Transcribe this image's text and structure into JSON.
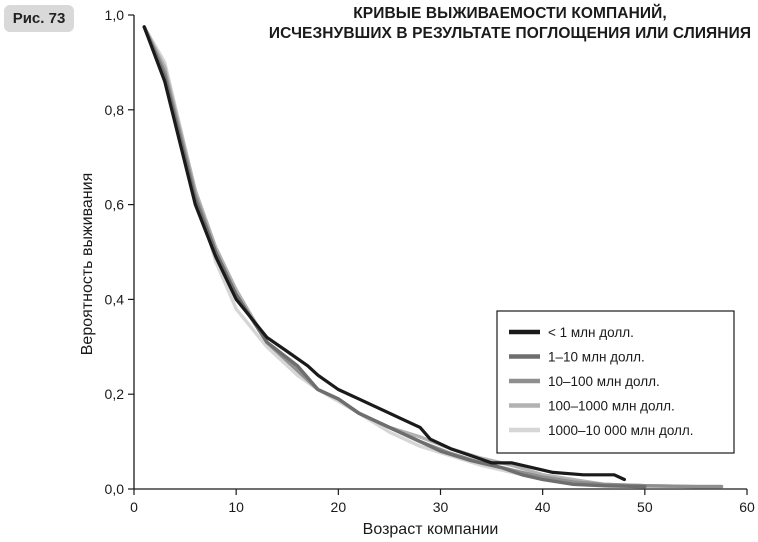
{
  "figure_label": "Рис. 73",
  "chart_data": {
    "type": "line",
    "title_lines": [
      "КРИВЫЕ ВЫЖИВАЕМОСТИ КОМПАНИЙ,",
      "ИСЧЕЗНУВШИХ В РЕЗУЛЬТАТЕ ПОГЛОЩЕНИЯ ИЛИ СЛИЯНИЯ"
    ],
    "xlabel": "Возраст компании",
    "ylabel": "Вероятность выживания",
    "xlim": [
      0,
      60
    ],
    "ylim": [
      0,
      1
    ],
    "x_ticks": [
      0,
      10,
      20,
      30,
      40,
      50,
      60
    ],
    "x_tick_labels": [
      "0",
      "10",
      "20",
      "30",
      "40",
      "50",
      "60"
    ],
    "y_ticks": [
      0,
      0.2,
      0.4,
      0.6,
      0.8,
      1.0
    ],
    "y_tick_labels": [
      "0,0",
      "0,2",
      "0,4",
      "0,6",
      "0,8",
      "1,0"
    ],
    "legend_position": "right",
    "series": [
      {
        "name": "< 1 млн долл.",
        "color": "#1a1a1a",
        "points": [
          [
            1,
            0.975
          ],
          [
            3,
            0.86
          ],
          [
            6,
            0.6
          ],
          [
            8,
            0.49
          ],
          [
            10,
            0.4
          ],
          [
            13,
            0.32
          ],
          [
            15,
            0.29
          ],
          [
            17,
            0.26
          ],
          [
            18,
            0.24
          ],
          [
            20,
            0.21
          ],
          [
            22,
            0.19
          ],
          [
            24,
            0.17
          ],
          [
            26,
            0.15
          ],
          [
            28,
            0.13
          ],
          [
            29,
            0.105
          ],
          [
            31,
            0.085
          ],
          [
            33,
            0.07
          ],
          [
            35,
            0.055
          ],
          [
            37,
            0.055
          ],
          [
            39,
            0.045
          ],
          [
            41,
            0.035
          ],
          [
            44,
            0.03
          ],
          [
            47,
            0.03
          ],
          [
            48,
            0.02
          ]
        ]
      },
      {
        "name": "1–10 млн долл.",
        "color": "#6e6e6e",
        "points": [
          [
            1,
            0.975
          ],
          [
            3,
            0.87
          ],
          [
            6,
            0.61
          ],
          [
            8,
            0.5
          ],
          [
            10,
            0.41
          ],
          [
            13,
            0.31
          ],
          [
            16,
            0.26
          ],
          [
            18,
            0.21
          ],
          [
            20,
            0.19
          ],
          [
            22,
            0.16
          ],
          [
            25,
            0.13
          ],
          [
            28,
            0.1
          ],
          [
            30,
            0.08
          ],
          [
            33,
            0.06
          ],
          [
            36,
            0.045
          ],
          [
            38,
            0.03
          ],
          [
            40,
            0.02
          ],
          [
            43,
            0.01
          ],
          [
            46,
            0.007
          ],
          [
            50,
            0.005
          ]
        ]
      },
      {
        "name": "10–100 млн долл.",
        "color": "#8f8f8f",
        "points": [
          [
            1,
            0.975
          ],
          [
            3,
            0.88
          ],
          [
            6,
            0.62
          ],
          [
            8,
            0.5
          ],
          [
            10,
            0.41
          ],
          [
            13,
            0.31
          ],
          [
            16,
            0.25
          ],
          [
            18,
            0.21
          ],
          [
            20,
            0.19
          ],
          [
            22,
            0.16
          ],
          [
            25,
            0.13
          ],
          [
            28,
            0.1
          ],
          [
            31,
            0.075
          ],
          [
            34,
            0.055
          ],
          [
            37,
            0.04
          ],
          [
            40,
            0.025
          ],
          [
            43,
            0.015
          ],
          [
            46,
            0.01
          ],
          [
            50,
            0.007
          ],
          [
            55,
            0.005
          ],
          [
            57.5,
            0.005
          ]
        ]
      },
      {
        "name": "100–1000 млн долл.",
        "color": "#b2b2b2",
        "points": [
          [
            1,
            0.975
          ],
          [
            3,
            0.89
          ],
          [
            6,
            0.63
          ],
          [
            8,
            0.51
          ],
          [
            10,
            0.42
          ],
          [
            13,
            0.31
          ],
          [
            16,
            0.25
          ],
          [
            18,
            0.21
          ],
          [
            20,
            0.19
          ],
          [
            22,
            0.16
          ],
          [
            25,
            0.13
          ],
          [
            28,
            0.11
          ],
          [
            31,
            0.085
          ],
          [
            34,
            0.065
          ],
          [
            37,
            0.05
          ],
          [
            40,
            0.03
          ],
          [
            43,
            0.02
          ],
          [
            46,
            0.01
          ],
          [
            50,
            0.007
          ],
          [
            55,
            0.005
          ],
          [
            57.5,
            0.005
          ]
        ]
      },
      {
        "name": "1000–10 000 млн долл.",
        "color": "#d6d6d6",
        "points": [
          [
            1,
            0.975
          ],
          [
            3,
            0.9
          ],
          [
            6,
            0.63
          ],
          [
            8,
            0.48
          ],
          [
            10,
            0.38
          ],
          [
            13,
            0.3
          ],
          [
            16,
            0.24
          ],
          [
            18,
            0.21
          ],
          [
            20,
            0.185
          ],
          [
            22,
            0.16
          ],
          [
            25,
            0.12
          ],
          [
            28,
            0.09
          ],
          [
            31,
            0.07
          ],
          [
            34,
            0.05
          ],
          [
            37,
            0.035
          ],
          [
            40,
            0.02
          ],
          [
            43,
            0.01
          ],
          [
            47,
            0.005
          ],
          [
            52,
            0.005
          ],
          [
            57.5,
            0.005
          ]
        ]
      }
    ]
  }
}
